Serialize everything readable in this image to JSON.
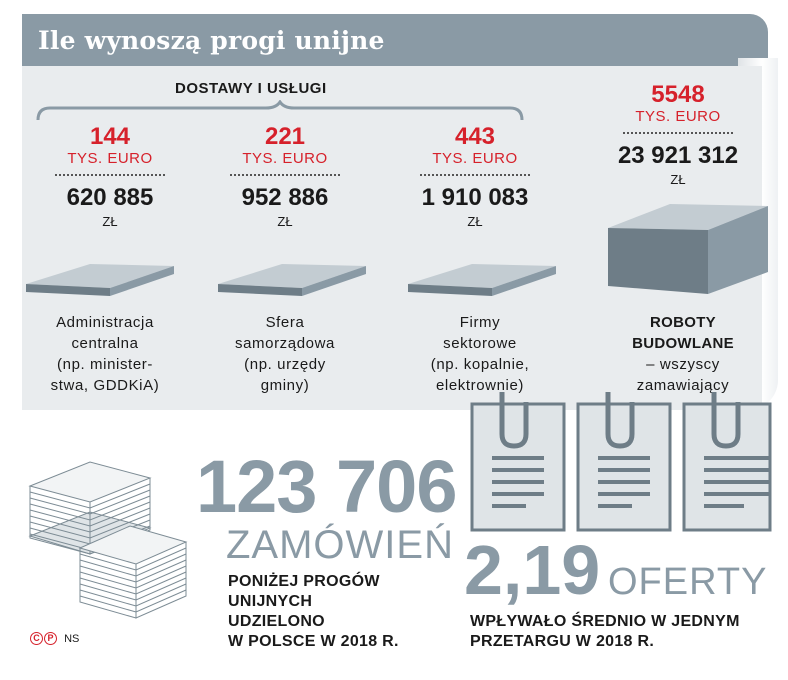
{
  "title": "Ile wynoszą progi unijne",
  "supplies_label": "DOSTAWY I USŁUGI",
  "columns": [
    {
      "threshold": "144",
      "unit": "TYS. EURO",
      "amount": "620 885",
      "currency": "ZŁ",
      "desc": [
        "Administracja",
        "centralna",
        "(np. minister-",
        "stwa, GDDKiA)"
      ]
    },
    {
      "threshold": "221",
      "unit": "TYS. EURO",
      "amount": "952 886",
      "currency": "ZŁ",
      "desc": [
        "Sfera",
        "samorządowa",
        "(np. urzędy",
        "gminy)"
      ]
    },
    {
      "threshold": "443",
      "unit": "TYS. EURO",
      "amount": "1 910 083",
      "currency": "ZŁ",
      "desc": [
        "Firmy",
        "sektorowe",
        "(np. kopalnie,",
        "elektrownie)"
      ]
    }
  ],
  "works": {
    "threshold": "5548",
    "unit": "TYS. EURO",
    "amount": "23 921 312",
    "currency": "ZŁ",
    "name": [
      "ROBOTY",
      "BUDOWLANE"
    ],
    "desc": [
      "– wszyscy",
      "zamawiający"
    ]
  },
  "orders": {
    "number": "123 706",
    "word": "ZAMÓWIEŃ",
    "caption": [
      "PONIŻEJ PROGÓW",
      "UNIJNYCH",
      "UDZIELONO",
      "W POLSCE W 2018 R."
    ]
  },
  "offers": {
    "number": "2,19",
    "word": "OFERTY",
    "caption": [
      "WPŁYWAŁO ŚREDNIO W JEDNYM",
      "PRZETARGU W 2018 R."
    ]
  },
  "source": "NS",
  "colors": {
    "accent_red": "#d6212b",
    "slate": "#8a9aa5",
    "panel": "#e9ecee"
  }
}
